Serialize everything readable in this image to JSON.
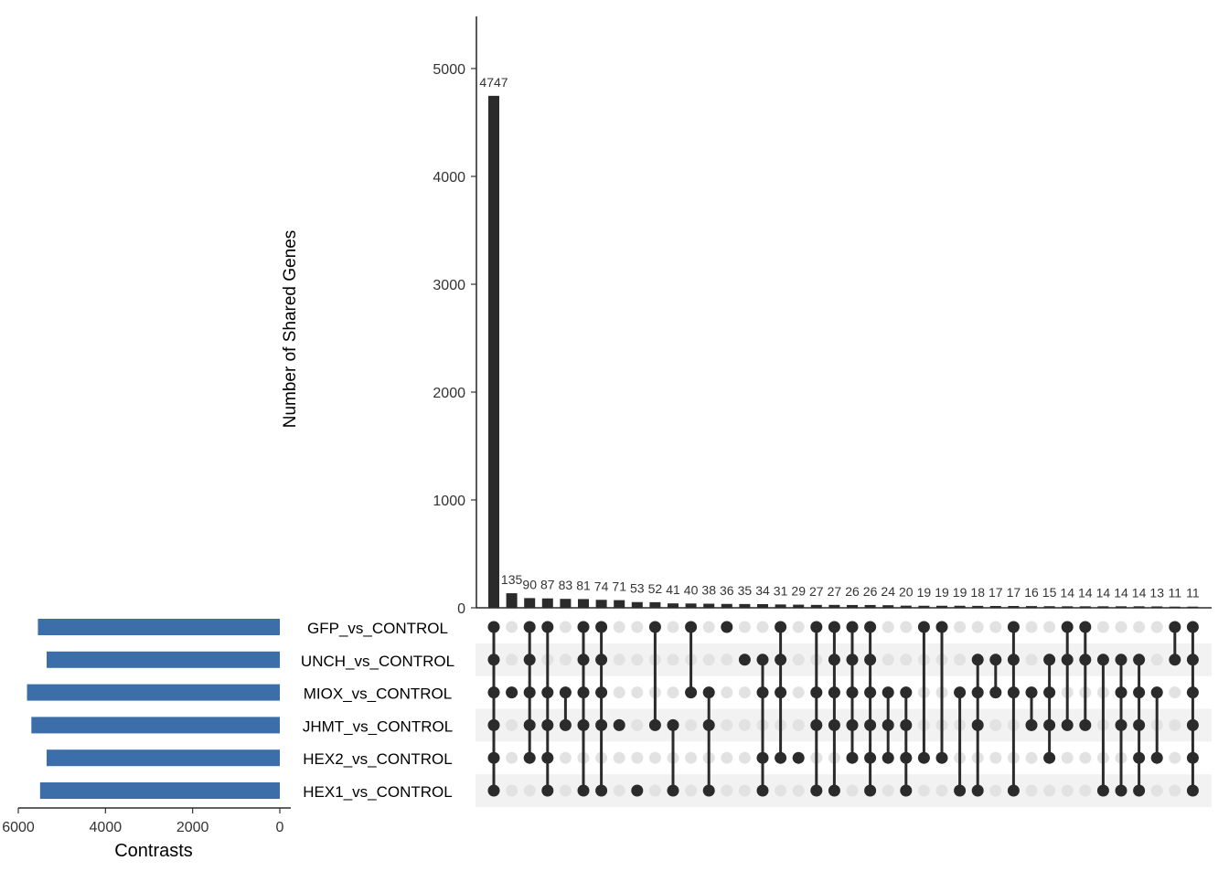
{
  "chart_data": {
    "type": "upset",
    "ylabel": "Number of Shared Genes",
    "ylim": [
      0,
      5500
    ],
    "y_ticks": [
      0,
      1000,
      2000,
      3000,
      4000,
      5000
    ],
    "sets": [
      "GFP_vs_CONTROL",
      "UNCH_vs_CONTROL",
      "MIOX_vs_CONTROL",
      "JHMT_vs_CONTROL",
      "HEX2_vs_CONTROL",
      "HEX1_vs_CONTROL"
    ],
    "set_sizes": [
      5550,
      5350,
      5800,
      5700,
      5350,
      5500
    ],
    "set_size_xlabel": "Contrasts",
    "set_size_ticks": [
      6000,
      4000,
      2000,
      0
    ],
    "intersection_sizes": [
      4747,
      135,
      90,
      87,
      83,
      81,
      74,
      71,
      53,
      52,
      41,
      40,
      38,
      36,
      35,
      34,
      31,
      29,
      27,
      27,
      26,
      26,
      24,
      20,
      19,
      19,
      19,
      18,
      17,
      17,
      16,
      15,
      14,
      14,
      14,
      14,
      14,
      13,
      11,
      11
    ],
    "intersections": [
      [
        0,
        1,
        2,
        3,
        4,
        5
      ],
      [
        2
      ],
      [
        0,
        1,
        2,
        3,
        4
      ],
      [
        0,
        2,
        3,
        4,
        5
      ],
      [
        2,
        3
      ],
      [
        0,
        1,
        2,
        3,
        5
      ],
      [
        0,
        1,
        2,
        3,
        5
      ],
      [
        3
      ],
      [
        5
      ],
      [
        0,
        3
      ],
      [
        3,
        5
      ],
      [
        0,
        2
      ],
      [
        2,
        3,
        5
      ],
      [
        0
      ],
      [
        1
      ],
      [
        1,
        2,
        4,
        5
      ],
      [
        0,
        1,
        2,
        4
      ],
      [
        4
      ],
      [
        0,
        2,
        3,
        5
      ],
      [
        0,
        1,
        2,
        3,
        5
      ],
      [
        0,
        1,
        2,
        3,
        4
      ],
      [
        0,
        1,
        2,
        3,
        4,
        5
      ],
      [
        2,
        3,
        4
      ],
      [
        2,
        3,
        4,
        5
      ],
      [
        0,
        4
      ],
      [
        0,
        4
      ],
      [
        2,
        5
      ],
      [
        1,
        2,
        3,
        5
      ],
      [
        1,
        2
      ],
      [
        0,
        1,
        2,
        5
      ],
      [
        2,
        3
      ],
      [
        1,
        2,
        3,
        4
      ],
      [
        0,
        1,
        3
      ],
      [
        0,
        1,
        3
      ],
      [
        1,
        5
      ],
      [
        1,
        2,
        3,
        5
      ],
      [
        1,
        2,
        3,
        4,
        5
      ],
      [
        2,
        4
      ],
      [
        0,
        1
      ],
      [
        0,
        1,
        2,
        3,
        4,
        5
      ]
    ],
    "colors": {
      "bar": "#2b2b2b",
      "set_bar": "#3c6ea9",
      "dot_on": "#2b2b2b",
      "dot_off": "#e2e2e2",
      "stripe": "#f2f2f2"
    }
  }
}
